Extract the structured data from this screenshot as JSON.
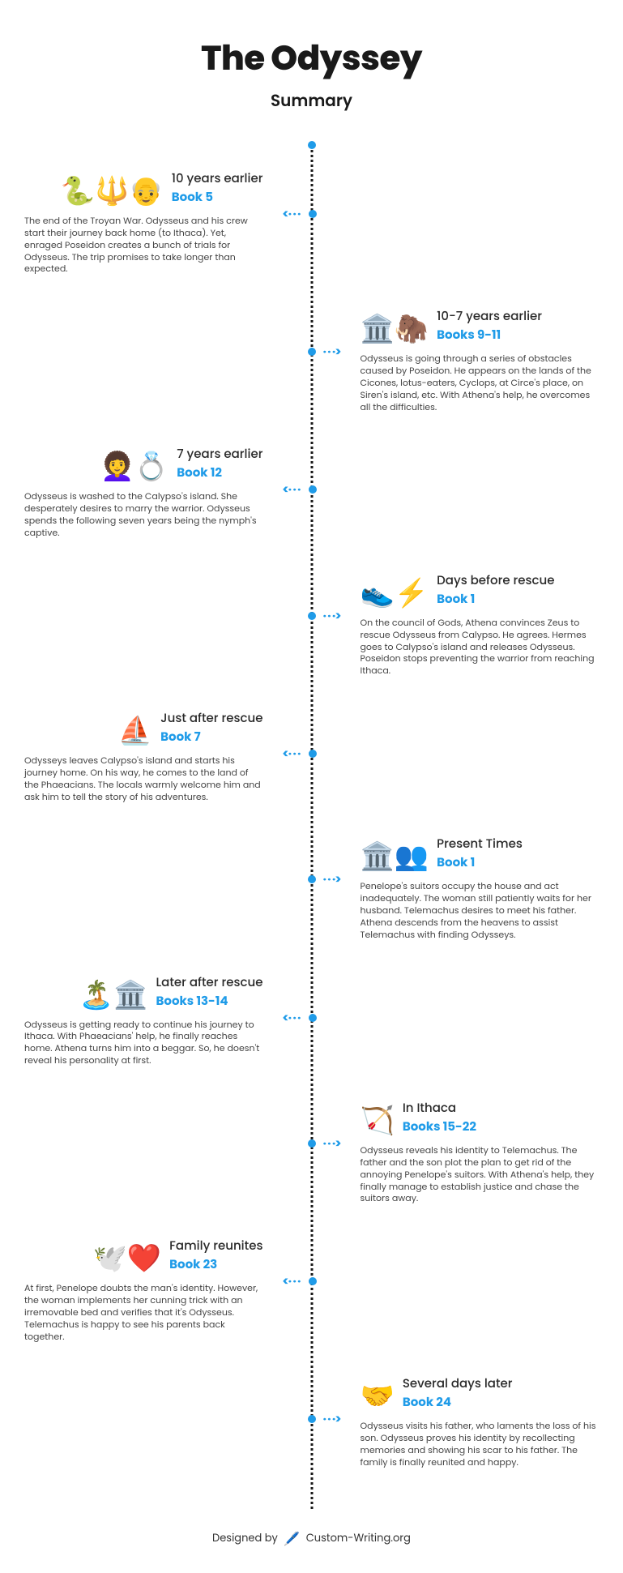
{
  "accent_color": "#1f9be8",
  "text_color": "#1a1a1a",
  "body_color": "#444444",
  "background_color": "#ffffff",
  "title": "The Odyssey",
  "subtitle": "Summary",
  "footer_prefix": "Designed by",
  "footer_brand": "Custom-Writing.org",
  "fontsize": {
    "title": 42,
    "subtitle": 20,
    "when": 15,
    "book": 15,
    "desc": 11
  },
  "arrow_left": "<· · ·",
  "arrow_right": "· · ·>",
  "items": [
    {
      "side": "left",
      "icon": "🐍🔱👴",
      "when": "10 years earlier",
      "book": "Book 5",
      "desc": "The end of the Troyan War. Odysseus and his crew start their journey back home (to Ithaca). Yet, enraged Poseidon creates a bunch of trials for Odysseus. The trip promises to take longer than expected."
    },
    {
      "side": "right",
      "icon": "🏛️🦣",
      "when": "10-7 years earlier",
      "book": "Books 9-11",
      "desc": "Odysseus is going through a series of obstacles caused by Poseidon. He appears on the lands of the Cicones, lotus-eaters, Cyclops, at Circe's place, on Siren's island, etc. With Athena's help, he overcomes all the difficulties."
    },
    {
      "side": "left",
      "icon": "👩‍🦱💍",
      "when": "7 years earlier",
      "book": "Book 12",
      "desc": "Odysseus is washed to the Calypso's island. She desperately desires to marry the warrior. Odysseus spends the following seven years being the nymph's captive."
    },
    {
      "side": "right",
      "icon": "👟⚡",
      "when": "Days before rescue",
      "book": "Book 1",
      "desc": "On the council of Gods, Athena convinces Zeus to rescue Odysseus from Calypso. He agrees. Hermes goes to Calypso's island and releases Odysseus. Poseidon stops preventing the warrior from reaching Ithaca."
    },
    {
      "side": "left",
      "icon": "⛵",
      "when": "Just after rescue",
      "book": "Book 7",
      "desc": "Odysseys leaves Calypso's island and starts his journey home. On his way, he comes to the land of the Phaeacians. The locals warmly welcome him and ask him to tell the story of his adventures."
    },
    {
      "side": "right",
      "icon": "🏛️👥",
      "when": "Present Times",
      "book": "Book 1",
      "desc": "Penelope's suitors occupy the house and act inadequately. The woman still patiently waits for her husband. Telemachus desires to meet his father. Athena descends from the heavens to assist Telemachus with finding Odysseys."
    },
    {
      "side": "left",
      "icon": "🏝️🏛️",
      "when": "Later after rescue",
      "book": "Books 13-14",
      "desc": "Odysseus is getting ready to continue his journey to Ithaca. With Phaeacians' help, he finally reaches home. Athena turns him into a beggar. So, he doesn't reveal his personality at first."
    },
    {
      "side": "right",
      "icon": "🏹",
      "when": "In Ithaca",
      "book": "Books 15-22",
      "desc": "Odysseus reveals his identity to Telemachus. The father and the son plot the plan to get rid of the annoying Penelope's suitors. With Athena's help, they finally manage to establish justice and chase the suitors away."
    },
    {
      "side": "left",
      "icon": "🕊️❤️",
      "when": "Family reunites",
      "book": "Book 23",
      "desc": "At first, Penelope doubts the man's identity. However, the woman implements her cunning trick with an irremovable bed and verifies that it's Odysseus. Telemachus is happy to see his parents back together."
    },
    {
      "side": "right",
      "icon": "🤝",
      "when": "Several days later",
      "book": "Book 24",
      "desc": "Odysseus visits his father, who laments the loss of his son. Odysseus proves his identity by recollecting memories and showing his scar to his father. The family is finally reunited and happy."
    }
  ]
}
